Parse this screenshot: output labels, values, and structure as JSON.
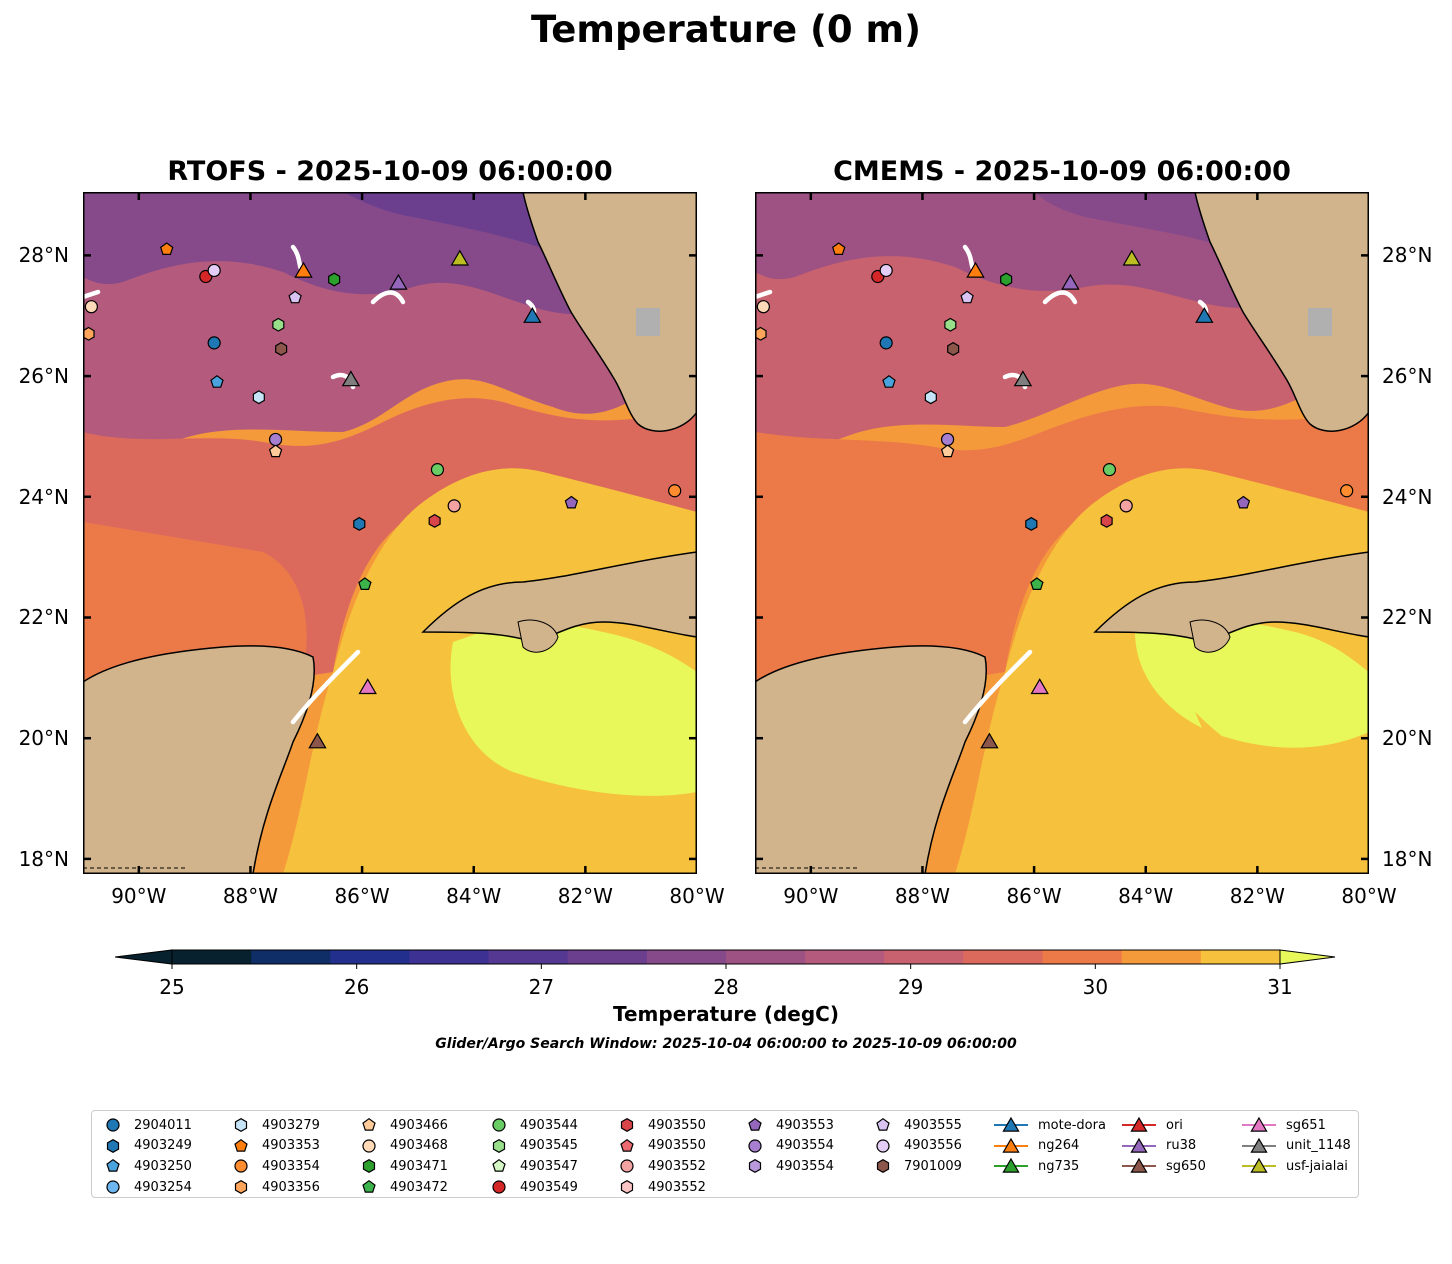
{
  "title": "Temperature (0 m)",
  "maps": [
    {
      "title": "RTOFS - 2025-10-09 06:00:00"
    },
    {
      "title": "CMEMS - 2025-10-09 06:00:00"
    }
  ],
  "axes": {
    "lat_ticks": [
      "28°N",
      "26°N",
      "24°N",
      "22°N",
      "20°N",
      "18°N"
    ],
    "lon_ticks": [
      "90°W",
      "88°W",
      "86°W",
      "84°W",
      "82°W",
      "80°W"
    ],
    "lon_range": [
      -91.0,
      -80.0
    ],
    "lat_range": [
      17.75,
      29.05
    ]
  },
  "colorbar": {
    "label": "Temperature (degC)",
    "ticks": [
      "25",
      "26",
      "27",
      "28",
      "29",
      "30",
      "31"
    ],
    "range": [
      25,
      31
    ],
    "step": 0.5,
    "extend": "both",
    "colors": [
      "#07212e",
      "#0f2d66",
      "#232f8c",
      "#3d3194",
      "#553891",
      "#6b3f8e",
      "#864a8a",
      "#9e5284",
      "#b45b7d",
      "#c8626f",
      "#dc6a5c",
      "#ec7a48",
      "#f59a3a",
      "#f6c13d"
    ],
    "extend_low_color": "#07212e",
    "extend_high_color": "#e8f75a",
    "land_color": "#d2b48c"
  },
  "search_window": "Glider/Argo Search Window: 2025-10-04 06:00:00 to 2025-10-09 06:00:00",
  "legend": [
    {
      "label": "2904011",
      "marker": "circle",
      "color": "#1f77b4"
    },
    {
      "label": "4903249",
      "marker": "hexagon",
      "color": "#1f77b4"
    },
    {
      "label": "4903250",
      "marker": "pentagon",
      "color": "#4aa3dd"
    },
    {
      "label": "4903254",
      "marker": "circle",
      "color": "#6db6f0"
    },
    {
      "label": "4903279",
      "marker": "hexagon",
      "color": "#c6e4f7"
    },
    {
      "label": "4903353",
      "marker": "pentagon",
      "color": "#ff7f0e"
    },
    {
      "label": "4903354",
      "marker": "circle",
      "color": "#ff8c2e"
    },
    {
      "label": "4903356",
      "marker": "hexagon",
      "color": "#ffa65c"
    },
    {
      "label": "4903466",
      "marker": "pentagon",
      "color": "#ffcc99"
    },
    {
      "label": "4903468",
      "marker": "circle",
      "color": "#ffd9b8"
    },
    {
      "label": "4903471",
      "marker": "hexagon",
      "color": "#2ca02c"
    },
    {
      "label": "4903472",
      "marker": "pentagon",
      "color": "#3cb44b"
    },
    {
      "label": "4903544",
      "marker": "circle",
      "color": "#6acc64"
    },
    {
      "label": "4903545",
      "marker": "hexagon",
      "color": "#98df8a"
    },
    {
      "label": "4903547",
      "marker": "pentagon",
      "color": "#d4f7c4"
    },
    {
      "label": "4903549",
      "marker": "circle",
      "color": "#d62728"
    },
    {
      "label": "4903550",
      "marker": "hexagon",
      "color": "#d9454a"
    },
    {
      "label": "4903550",
      "marker": "pentagon",
      "color": "#ea6a70"
    },
    {
      "label": "4903552",
      "marker": "circle",
      "color": "#f4a3a3"
    },
    {
      "label": "4903552",
      "marker": "hexagon",
      "color": "#fbc5c5"
    },
    {
      "label": "4903553",
      "marker": "pentagon",
      "color": "#9467bd"
    },
    {
      "label": "4903554",
      "marker": "circle",
      "color": "#a77fd0"
    },
    {
      "label": "4903554",
      "marker": "hexagon",
      "color": "#b799dc"
    },
    {
      "label": "4903555",
      "marker": "pentagon",
      "color": "#d8c3f2"
    },
    {
      "label": "4903556",
      "marker": "circle",
      "color": "#e4cdf7"
    },
    {
      "label": "7901009",
      "marker": "hexagon",
      "color": "#8c564b"
    },
    {
      "label": "mote-dora",
      "marker": "triangle",
      "color": "#1f77b4"
    },
    {
      "label": "ng264",
      "marker": "triangle",
      "color": "#ff7f0e"
    },
    {
      "label": "ng735",
      "marker": "triangle",
      "color": "#2ca02c"
    },
    {
      "label": "ori",
      "marker": "triangle",
      "color": "#d62728"
    },
    {
      "label": "ru38",
      "marker": "triangle",
      "color": "#9467bd"
    },
    {
      "label": "sg650",
      "marker": "triangle",
      "color": "#8c564b"
    },
    {
      "label": "sg651",
      "marker": "triangle",
      "color": "#e377c2"
    },
    {
      "label": "unit_1148",
      "marker": "triangle",
      "color": "#7f7f7f"
    },
    {
      "label": "usf-jaialai",
      "marker": "triangle",
      "color": "#bcbd22"
    }
  ],
  "observations": [
    {
      "id": "2904011",
      "lon": -88.65,
      "lat": 26.55
    },
    {
      "id": "4903249",
      "lon": -86.05,
      "lat": 23.55
    },
    {
      "id": "4903250",
      "lon": -88.6,
      "lat": 25.9
    },
    {
      "id": "4903279",
      "lon": -87.85,
      "lat": 25.65
    },
    {
      "id": "4903353",
      "lon": -89.5,
      "lat": 28.1
    },
    {
      "id": "4903354",
      "lon": -80.4,
      "lat": 24.1
    },
    {
      "id": "4903356",
      "lon": -90.9,
      "lat": 26.7
    },
    {
      "id": "4903466",
      "lon": -87.55,
      "lat": 24.75
    },
    {
      "id": "4903468",
      "lon": -90.85,
      "lat": 27.15
    },
    {
      "id": "4903471",
      "lon": -86.5,
      "lat": 27.6
    },
    {
      "id": "4903472",
      "lon": -85.95,
      "lat": 22.55
    },
    {
      "id": "4903544",
      "lon": -84.65,
      "lat": 24.45
    },
    {
      "id": "4903545",
      "lon": -87.5,
      "lat": 26.85
    },
    {
      "id": "4903549",
      "lon": -88.8,
      "lat": 27.65
    },
    {
      "id": "4903550",
      "lon": -84.7,
      "lat": 23.6
    },
    {
      "id": "4903552",
      "lon": -84.35,
      "lat": 23.85
    },
    {
      "id": "4903553",
      "lon": -82.25,
      "lat": 23.9
    },
    {
      "id": "4903554",
      "lon": -87.55,
      "lat": 24.95
    },
    {
      "id": "4903555",
      "lon": -87.2,
      "lat": 27.3
    },
    {
      "id": "4903556",
      "lon": -88.65,
      "lat": 27.75
    },
    {
      "id": "7901009",
      "lon": -87.45,
      "lat": 26.45
    },
    {
      "id": "mote-dora",
      "lon": -82.95,
      "lat": 27.0
    },
    {
      "id": "ng264",
      "lon": -87.05,
      "lat": 27.75
    },
    {
      "id": "ru38",
      "lon": -85.35,
      "lat": 27.55
    },
    {
      "id": "sg650",
      "lon": -86.8,
      "lat": 19.95
    },
    {
      "id": "sg651",
      "lon": -85.9,
      "lat": 20.85
    },
    {
      "id": "unit_1148",
      "lon": -86.2,
      "lat": 25.95
    },
    {
      "id": "usf-jaialai",
      "lon": -84.25,
      "lat": 27.95
    }
  ]
}
